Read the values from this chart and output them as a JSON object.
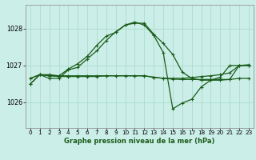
{
  "title": "Graphe pression niveau de la mer (hPa)",
  "bg_color": "#cceee8",
  "grid_color_major": "#aaddcc",
  "grid_color_minor": "#bbeeee",
  "line_color": "#1a5c1a",
  "xlim": [
    -0.5,
    23.5
  ],
  "ylim": [
    1025.3,
    1028.65
  ],
  "yticks": [
    1026,
    1027,
    1028
  ],
  "xticks": [
    0,
    1,
    2,
    3,
    4,
    5,
    6,
    7,
    8,
    9,
    10,
    11,
    12,
    13,
    14,
    15,
    16,
    17,
    18,
    19,
    20,
    21,
    22,
    23
  ],
  "series": [
    {
      "x": [
        0,
        1,
        2,
        3,
        4,
        5,
        6,
        7,
        8,
        9,
        10,
        11,
        12,
        13,
        14,
        15,
        16,
        17,
        18,
        19,
        20,
        21,
        22,
        23
      ],
      "y": [
        1026.65,
        1026.75,
        1026.75,
        1026.72,
        1026.72,
        1026.72,
        1026.72,
        1026.72,
        1026.72,
        1026.72,
        1026.72,
        1026.72,
        1026.72,
        1026.68,
        1026.65,
        1026.63,
        1026.62,
        1026.62,
        1026.62,
        1026.62,
        1026.62,
        1026.62,
        1027.0,
        1027.0
      ]
    },
    {
      "x": [
        0,
        1,
        2,
        3,
        4,
        5,
        6,
        7,
        8,
        9,
        10,
        11,
        12,
        13,
        14,
        15,
        16,
        17,
        18,
        19,
        20,
        21,
        22,
        23
      ],
      "y": [
        1026.65,
        1026.75,
        1026.72,
        1026.7,
        1026.7,
        1026.7,
        1026.7,
        1026.7,
        1026.72,
        1026.72,
        1026.72,
        1026.72,
        1026.72,
        1026.68,
        1026.65,
        1026.65,
        1026.65,
        1026.67,
        1026.7,
        1026.72,
        1026.75,
        1026.8,
        1027.0,
        1027.0
      ]
    },
    {
      "x": [
        0,
        1,
        2,
        3,
        4,
        5,
        6,
        7,
        8,
        9,
        10,
        11,
        12,
        13,
        14,
        15,
        16,
        17,
        18,
        19,
        20,
        21,
        22,
        23
      ],
      "y": [
        1026.5,
        1026.75,
        1026.72,
        1026.72,
        1026.9,
        1027.05,
        1027.25,
        1027.55,
        1027.8,
        1027.9,
        1028.1,
        1028.15,
        1028.15,
        1027.85,
        1027.6,
        1027.3,
        1026.82,
        1026.65,
        1026.6,
        1026.6,
        1026.6,
        1026.62,
        1026.65,
        1026.65
      ]
    },
    {
      "x": [
        0,
        1,
        2,
        3,
        4,
        5,
        6,
        7,
        8,
        9,
        10,
        11,
        12,
        13,
        14,
        15,
        16,
        17,
        18,
        19,
        20,
        21,
        22,
        23
      ],
      "y": [
        1026.5,
        1026.75,
        1026.65,
        1026.65,
        1026.88,
        1026.95,
        1027.18,
        1027.4,
        1027.68,
        1027.92,
        1028.1,
        1028.18,
        1028.1,
        1027.82,
        1027.35,
        1025.82,
        1025.98,
        1026.08,
        1026.42,
        1026.6,
        1026.68,
        1027.0,
        1027.0,
        1027.02
      ]
    }
  ]
}
